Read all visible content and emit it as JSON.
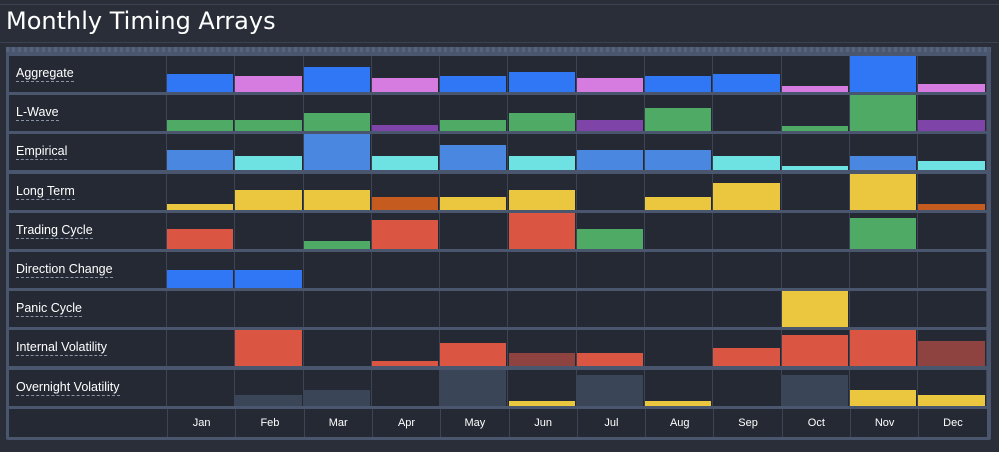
{
  "title": "Monthly Timing Arrays",
  "months": [
    "Jan",
    "Feb",
    "Mar",
    "Apr",
    "May",
    "Jun",
    "Jul",
    "Aug",
    "Sep",
    "Oct",
    "Nov",
    "Dec"
  ],
  "colors": {
    "blue": "#2f77f4",
    "pink": "#d67be0",
    "green": "#4faa65",
    "purple": "#7f44a8",
    "sky": "#4a87e0",
    "cyan": "#6ee1e3",
    "yellow": "#ebc73f",
    "orange": "#c65b20",
    "red": "#da5542",
    "darkred": "#8e4340",
    "slate": "#3a4557"
  },
  "rows": [
    {
      "label": "Aggregate",
      "cells": [
        {
          "v": 0.5,
          "c": "blue"
        },
        {
          "v": 0.45,
          "c": "pink"
        },
        {
          "v": 0.7,
          "c": "blue"
        },
        {
          "v": 0.4,
          "c": "pink"
        },
        {
          "v": 0.45,
          "c": "blue"
        },
        {
          "v": 0.55,
          "c": "blue"
        },
        {
          "v": 0.4,
          "c": "pink"
        },
        {
          "v": 0.45,
          "c": "blue"
        },
        {
          "v": 0.5,
          "c": "blue"
        },
        {
          "v": 0.18,
          "c": "pink"
        },
        {
          "v": 1.0,
          "c": "blue"
        },
        {
          "v": 0.22,
          "c": "pink"
        }
      ]
    },
    {
      "label": "L-Wave",
      "cells": [
        {
          "v": 0.3,
          "c": "green"
        },
        {
          "v": 0.3,
          "c": "green"
        },
        {
          "v": 0.5,
          "c": "green"
        },
        {
          "v": 0.18,
          "c": "purple"
        },
        {
          "v": 0.3,
          "c": "green"
        },
        {
          "v": 0.5,
          "c": "green"
        },
        {
          "v": 0.3,
          "c": "purple"
        },
        {
          "v": 0.65,
          "c": "green"
        },
        {
          "v": 0,
          "c": "green"
        },
        {
          "v": 0.15,
          "c": "green"
        },
        {
          "v": 1.0,
          "c": "green"
        },
        {
          "v": 0.3,
          "c": "purple"
        }
      ]
    },
    {
      "label": "Empirical",
      "cells": [
        {
          "v": 0.55,
          "c": "sky"
        },
        {
          "v": 0.4,
          "c": "cyan"
        },
        {
          "v": 1.0,
          "c": "sky"
        },
        {
          "v": 0.4,
          "c": "cyan"
        },
        {
          "v": 0.7,
          "c": "sky"
        },
        {
          "v": 0.4,
          "c": "cyan"
        },
        {
          "v": 0.55,
          "c": "sky"
        },
        {
          "v": 0.55,
          "c": "sky"
        },
        {
          "v": 0.4,
          "c": "cyan"
        },
        {
          "v": 0.1,
          "c": "cyan"
        },
        {
          "v": 0.4,
          "c": "sky"
        },
        {
          "v": 0.25,
          "c": "cyan"
        }
      ]
    },
    {
      "label": "Long Term",
      "cells": [
        {
          "v": 0.18,
          "c": "yellow"
        },
        {
          "v": 0.55,
          "c": "yellow"
        },
        {
          "v": 0.55,
          "c": "yellow"
        },
        {
          "v": 0.35,
          "c": "orange"
        },
        {
          "v": 0.35,
          "c": "yellow"
        },
        {
          "v": 0.55,
          "c": "yellow"
        },
        {
          "v": 0,
          "c": "yellow"
        },
        {
          "v": 0.35,
          "c": "yellow"
        },
        {
          "v": 0.75,
          "c": "yellow"
        },
        {
          "v": 0,
          "c": "yellow"
        },
        {
          "v": 1.0,
          "c": "yellow"
        },
        {
          "v": 0.18,
          "c": "orange"
        }
      ]
    },
    {
      "label": "Trading Cycle",
      "cells": [
        {
          "v": 0.55,
          "c": "red"
        },
        {
          "v": 0,
          "c": "red"
        },
        {
          "v": 0.22,
          "c": "green"
        },
        {
          "v": 0.8,
          "c": "red"
        },
        {
          "v": 0,
          "c": "red"
        },
        {
          "v": 1.0,
          "c": "red"
        },
        {
          "v": 0.55,
          "c": "green"
        },
        {
          "v": 0,
          "c": "red"
        },
        {
          "v": 0,
          "c": "red"
        },
        {
          "v": 0,
          "c": "red"
        },
        {
          "v": 0.85,
          "c": "green"
        },
        {
          "v": 0,
          "c": "red"
        }
      ]
    },
    {
      "label": "Direction Change",
      "cells": [
        {
          "v": 0.5,
          "c": "blue"
        },
        {
          "v": 0.5,
          "c": "blue"
        },
        {
          "v": 0,
          "c": "blue"
        },
        {
          "v": 0,
          "c": "blue"
        },
        {
          "v": 0,
          "c": "blue"
        },
        {
          "v": 0,
          "c": "blue"
        },
        {
          "v": 0,
          "c": "blue"
        },
        {
          "v": 0,
          "c": "blue"
        },
        {
          "v": 0,
          "c": "blue"
        },
        {
          "v": 0,
          "c": "blue"
        },
        {
          "v": 0,
          "c": "blue"
        },
        {
          "v": 0,
          "c": "blue"
        }
      ]
    },
    {
      "label": "Panic Cycle",
      "cells": [
        {
          "v": 0,
          "c": "yellow"
        },
        {
          "v": 0,
          "c": "yellow"
        },
        {
          "v": 0,
          "c": "yellow"
        },
        {
          "v": 0,
          "c": "yellow"
        },
        {
          "v": 0,
          "c": "yellow"
        },
        {
          "v": 0,
          "c": "yellow"
        },
        {
          "v": 0,
          "c": "yellow"
        },
        {
          "v": 0,
          "c": "yellow"
        },
        {
          "v": 0,
          "c": "yellow"
        },
        {
          "v": 1.0,
          "c": "yellow"
        },
        {
          "v": 0,
          "c": "yellow"
        },
        {
          "v": 0,
          "c": "yellow"
        }
      ]
    },
    {
      "label": "Internal Volatility",
      "cells": [
        {
          "v": 0,
          "c": "red"
        },
        {
          "v": 1.0,
          "c": "red"
        },
        {
          "v": 0,
          "c": "red"
        },
        {
          "v": 0.15,
          "c": "red"
        },
        {
          "v": 0.65,
          "c": "red"
        },
        {
          "v": 0.35,
          "c": "darkred"
        },
        {
          "v": 0.35,
          "c": "red"
        },
        {
          "v": 0,
          "c": "red"
        },
        {
          "v": 0.5,
          "c": "red"
        },
        {
          "v": 0.85,
          "c": "red"
        },
        {
          "v": 1.0,
          "c": "red"
        },
        {
          "v": 0.7,
          "c": "darkred"
        }
      ]
    },
    {
      "label": "Overnight Volatility",
      "cells": [
        {
          "v": 0,
          "c": "slate"
        },
        {
          "v": 0.3,
          "c": "slate"
        },
        {
          "v": 0.45,
          "c": "slate"
        },
        {
          "v": 0,
          "c": "slate"
        },
        {
          "v": 1.0,
          "c": "slate"
        },
        {
          "v": 0.15,
          "c": "yellow"
        },
        {
          "v": 0.85,
          "c": "slate"
        },
        {
          "v": 0.15,
          "c": "yellow"
        },
        {
          "v": 0,
          "c": "slate"
        },
        {
          "v": 0.85,
          "c": "slate"
        },
        {
          "v": 0.45,
          "c": "yellow"
        },
        {
          "v": 0.3,
          "c": "yellow"
        }
      ]
    }
  ]
}
